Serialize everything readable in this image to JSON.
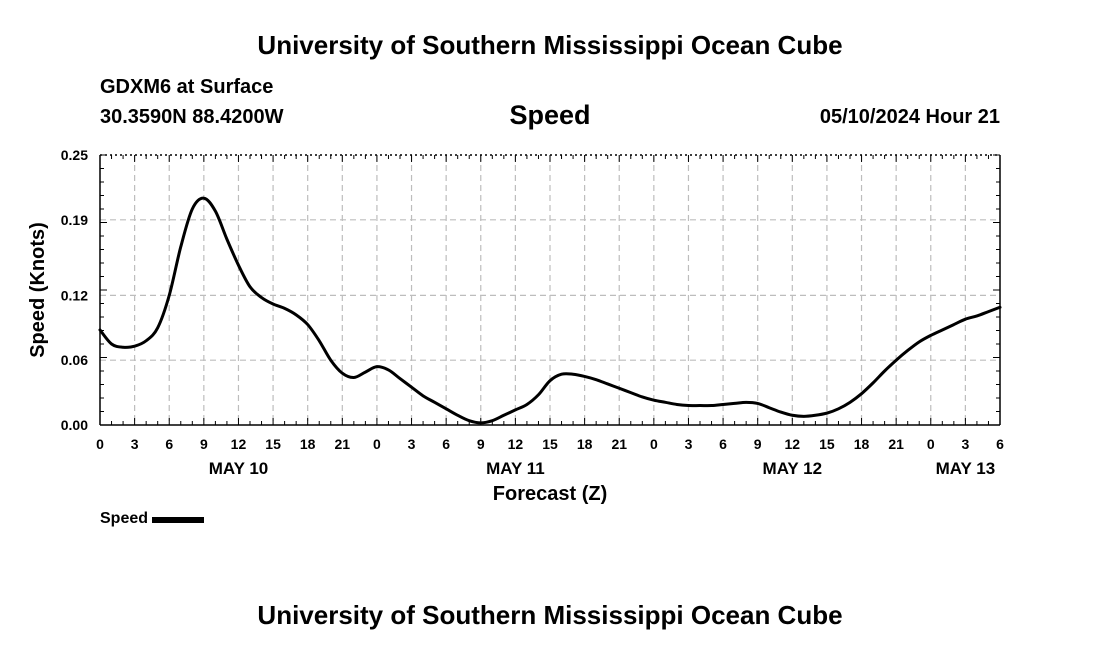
{
  "header": {
    "title": "University of Southern Mississippi Ocean Cube",
    "station": "GDXM6 at Surface",
    "coords": "30.3590N  88.4200W",
    "plot_title": "Speed",
    "datetime": "05/10/2024 Hour 21"
  },
  "footer": {
    "title": "University of Southern Mississippi Ocean Cube"
  },
  "chart_data": {
    "type": "line",
    "title": "Speed",
    "xlabel": "Forecast (Z)",
    "ylabel": "Speed (Knots)",
    "xlim": [
      0,
      78
    ],
    "ylim": [
      0,
      0.25
    ],
    "yticks": [
      0.0,
      0.06,
      0.12,
      0.19,
      0.25
    ],
    "ytick_labels": [
      "0.00",
      "0.06",
      "0.12",
      "0.19",
      "0.25"
    ],
    "xtick_labels": [
      "0",
      "3",
      "6",
      "9",
      "12",
      "15",
      "18",
      "21",
      "0",
      "3",
      "6",
      "9",
      "12",
      "15",
      "18",
      "21",
      "0",
      "3",
      "6",
      "9",
      "12",
      "15",
      "18",
      "21",
      "0",
      "3",
      "6"
    ],
    "date_labels": [
      {
        "label": "MAY 10",
        "hour": 12
      },
      {
        "label": "MAY 11",
        "hour": 36
      },
      {
        "label": "MAY 12",
        "hour": 60
      },
      {
        "label": "MAY 13",
        "hour": 75
      }
    ],
    "grid": true,
    "legend": "bottom-left",
    "series": [
      {
        "name": "Speed",
        "color": "#000000",
        "x": [
          0,
          1,
          2,
          3,
          4,
          5,
          6,
          7,
          8,
          9,
          10,
          11,
          12,
          13,
          14,
          15,
          16,
          17,
          18,
          19,
          20,
          21,
          22,
          23,
          24,
          25,
          26,
          27,
          28,
          29,
          30,
          31,
          32,
          33,
          34,
          35,
          36,
          37,
          38,
          39,
          40,
          41,
          42,
          43,
          44,
          45,
          46,
          47,
          48,
          49,
          50,
          51,
          52,
          53,
          54,
          55,
          56,
          57,
          58,
          59,
          60,
          61,
          62,
          63,
          64,
          65,
          66,
          67,
          68,
          69,
          70,
          71,
          72,
          73,
          74,
          75,
          76,
          77,
          78
        ],
        "values": [
          0.088,
          0.075,
          0.072,
          0.073,
          0.078,
          0.09,
          0.12,
          0.165,
          0.2,
          0.21,
          0.198,
          0.172,
          0.148,
          0.128,
          0.118,
          0.112,
          0.108,
          0.102,
          0.093,
          0.078,
          0.06,
          0.048,
          0.044,
          0.049,
          0.054,
          0.051,
          0.043,
          0.035,
          0.027,
          0.021,
          0.015,
          0.009,
          0.004,
          0.002,
          0.004,
          0.009,
          0.014,
          0.019,
          0.028,
          0.041,
          0.047,
          0.047,
          0.045,
          0.042,
          0.038,
          0.034,
          0.03,
          0.026,
          0.023,
          0.021,
          0.019,
          0.018,
          0.018,
          0.018,
          0.019,
          0.02,
          0.021,
          0.02,
          0.016,
          0.012,
          0.009,
          0.008,
          0.009,
          0.011,
          0.015,
          0.021,
          0.029,
          0.039,
          0.05,
          0.06,
          0.069,
          0.077,
          0.083,
          0.088,
          0.093,
          0.098,
          0.101,
          0.105,
          0.109
        ]
      }
    ]
  }
}
